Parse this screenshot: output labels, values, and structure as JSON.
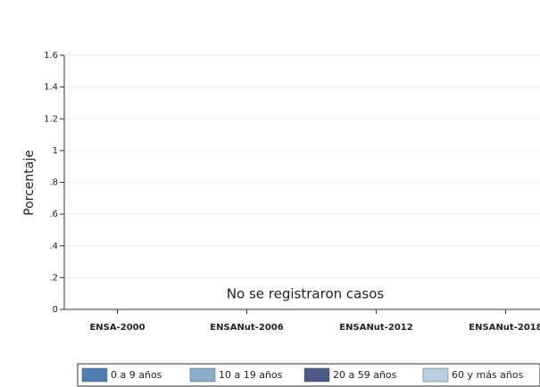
{
  "chart_data": {
    "type": "bar",
    "categories": [
      "ENSA-2000",
      "ENSANut-2006",
      "ENSANut-2012",
      "ENSANut-2018"
    ],
    "series": [
      {
        "name": "0 a 9 años",
        "color": "#4e7fb0",
        "values": [
          null,
          null,
          null,
          null
        ]
      },
      {
        "name": "10 a 19 años",
        "color": "#8aaec9",
        "values": [
          null,
          null,
          null,
          null
        ]
      },
      {
        "name": "20 a 59 años",
        "color": "#4a5a85",
        "values": [
          null,
          null,
          null,
          null
        ]
      },
      {
        "name": "60 y más años",
        "color": "#b8cfe0",
        "values": [
          null,
          null,
          null,
          null
        ]
      }
    ],
    "y_label": "Porcentaje",
    "annotation": "No se registraron casos",
    "ylim": [
      0,
      1.6
    ],
    "yticks": [
      0,
      {
        "value": 0.2,
        "label": ".2"
      },
      {
        "value": 0.4,
        "label": ".4"
      },
      {
        "value": 0.6,
        "label": ".6"
      },
      {
        "value": 0.8,
        "label": ".8"
      },
      1,
      1.2,
      1.4,
      1.6
    ],
    "grid": true,
    "legend": "bottom"
  }
}
